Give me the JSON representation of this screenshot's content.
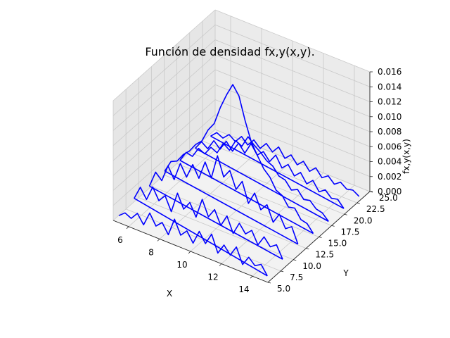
{
  "chart_data": {
    "type": "line3d",
    "title": "Función de densidad fx,y(x,y).",
    "xlabel": "X",
    "ylabel": "Y",
    "zlabel": "fx,y(x,y)",
    "xlim": [
      5,
      15
    ],
    "ylim": [
      5,
      25
    ],
    "zlim": [
      0,
      0.016
    ],
    "x_ticks": [
      "6",
      "8",
      "10",
      "12",
      "14"
    ],
    "y_ticks": [
      "5.0",
      "7.5",
      "10.0",
      "12.5",
      "15.0",
      "17.5",
      "20.0",
      "22.5",
      "25.0"
    ],
    "z_ticks": [
      "0.000",
      "0.002",
      "0.004",
      "0.006",
      "0.008",
      "0.010",
      "0.012",
      "0.014",
      "0.016"
    ],
    "line_color": "#0000ff",
    "pane_color": "#f2f2f2",
    "grid": true,
    "series": [
      {
        "y": 5.5,
        "x": [
          5.2,
          5.6,
          6,
          6.4,
          6.8,
          7.2,
          7.6,
          8,
          8.4,
          8.8,
          9.2,
          9.6,
          10,
          10.4,
          10.8,
          11.2,
          11.6,
          12,
          12.4,
          12.8,
          13.2,
          13.6,
          14,
          14.4,
          14.8
        ],
        "z": [
          0.0005,
          0.0012,
          0.0008,
          0.0018,
          0.0006,
          0.0025,
          0.0011,
          0.0019,
          0.0006,
          0.003,
          0.0012,
          0.0021,
          0.0008,
          0.0027,
          0.0014,
          0.003,
          0.0008,
          0.0022,
          0.0012,
          0.0026,
          0.0006,
          0.0019,
          0.0011,
          0.0016,
          0.0004
        ]
      },
      {
        "y": 8.5,
        "x": [
          5.2,
          5.6,
          6,
          6.4,
          6.8,
          7.2,
          7.6,
          8,
          8.4,
          8.8,
          9.2,
          9.6,
          10,
          10.4,
          10.8,
          11.2,
          11.6,
          12,
          12.4,
          12.8,
          13.2,
          13.6,
          14,
          14.4,
          14.8
        ],
        "z": [
          0.001,
          0.0028,
          0.0015,
          0.0035,
          0.002,
          0.003,
          0.0012,
          0.004,
          0.0022,
          0.0034,
          0.0018,
          0.0045,
          0.0025,
          0.0038,
          0.002,
          0.0036,
          0.0016,
          0.0033,
          0.0022,
          0.003,
          0.0014,
          0.0028,
          0.0018,
          0.0024,
          0.0008
        ]
      },
      {
        "y": 11.5,
        "x": [
          5.2,
          5.6,
          6,
          6.4,
          6.8,
          7.2,
          7.6,
          8,
          8.4,
          8.8,
          9.2,
          9.6,
          10,
          10.4,
          10.8,
          11.2,
          11.6,
          12,
          12.4,
          12.8,
          13.2,
          13.6,
          14,
          14.4,
          14.8
        ],
        "z": [
          0.0008,
          0.003,
          0.0022,
          0.0045,
          0.003,
          0.0055,
          0.004,
          0.006,
          0.0045,
          0.007,
          0.0052,
          0.0085,
          0.006,
          0.0072,
          0.005,
          0.0064,
          0.0038,
          0.0055,
          0.0036,
          0.0046,
          0.0026,
          0.004,
          0.0024,
          0.003,
          0.001
        ]
      },
      {
        "y": 14.5,
        "x": [
          5.2,
          5.6,
          6,
          6.4,
          6.8,
          7.2,
          7.6,
          8,
          8.4,
          8.8,
          9.2,
          9.6,
          10,
          10.4,
          10.8,
          11.2,
          11.6,
          12,
          12.4,
          12.8,
          13.2,
          13.6,
          14,
          14.4,
          14.8
        ],
        "z": [
          0.001,
          0.0026,
          0.003,
          0.0042,
          0.005,
          0.0062,
          0.007,
          0.0088,
          0.01,
          0.0125,
          0.0145,
          0.0162,
          0.015,
          0.012,
          0.0095,
          0.008,
          0.0066,
          0.0058,
          0.0044,
          0.004,
          0.0028,
          0.003,
          0.0018,
          0.0016,
          0.0006
        ]
      },
      {
        "y": 17.5,
        "x": [
          5.2,
          5.6,
          6,
          6.4,
          6.8,
          7.2,
          7.6,
          8,
          8.4,
          8.8,
          9.2,
          9.6,
          10,
          10.4,
          10.8,
          11.2,
          11.6,
          12,
          12.4,
          12.8,
          13.2,
          13.6,
          14,
          14.4,
          14.8
        ],
        "z": [
          0.0006,
          0.002,
          0.0018,
          0.0032,
          0.0028,
          0.004,
          0.0036,
          0.0052,
          0.0046,
          0.0062,
          0.0058,
          0.0074,
          0.0066,
          0.006,
          0.0052,
          0.0048,
          0.0038,
          0.0036,
          0.0026,
          0.003,
          0.002,
          0.0022,
          0.0014,
          0.0012,
          0.0004
        ]
      },
      {
        "y": 20.5,
        "x": [
          5.2,
          5.6,
          6,
          6.4,
          6.8,
          7.2,
          7.6,
          8,
          8.4,
          8.8,
          9.2,
          9.6,
          10,
          10.4,
          10.8,
          11.2,
          11.6,
          12,
          12.4,
          12.8,
          13.2,
          13.6,
          14,
          14.4,
          14.8
        ],
        "z": [
          0.0004,
          0.0016,
          0.001,
          0.0024,
          0.0016,
          0.003,
          0.002,
          0.0034,
          0.0024,
          0.004,
          0.0028,
          0.0036,
          0.0026,
          0.0038,
          0.0024,
          0.0032,
          0.002,
          0.0028,
          0.0016,
          0.0024,
          0.0012,
          0.0018,
          0.001,
          0.0012,
          0.0003
        ]
      },
      {
        "y": 23.5,
        "x": [
          5.2,
          5.6,
          6,
          6.4,
          6.8,
          7.2,
          7.6,
          8,
          8.4,
          8.8,
          9.2,
          9.6,
          10,
          10.4,
          10.8,
          11.2,
          11.6,
          12,
          12.4,
          12.8,
          13.2,
          13.6,
          14,
          14.4,
          14.8
        ],
        "z": [
          0.0002,
          0.001,
          0.0006,
          0.0014,
          0.0008,
          0.0018,
          0.001,
          0.002,
          0.0012,
          0.0022,
          0.0014,
          0.0024,
          0.0012,
          0.002,
          0.001,
          0.0018,
          0.0008,
          0.0016,
          0.0006,
          0.0012,
          0.0004,
          0.001,
          0.0004,
          0.0006,
          0.0001
        ]
      }
    ]
  }
}
